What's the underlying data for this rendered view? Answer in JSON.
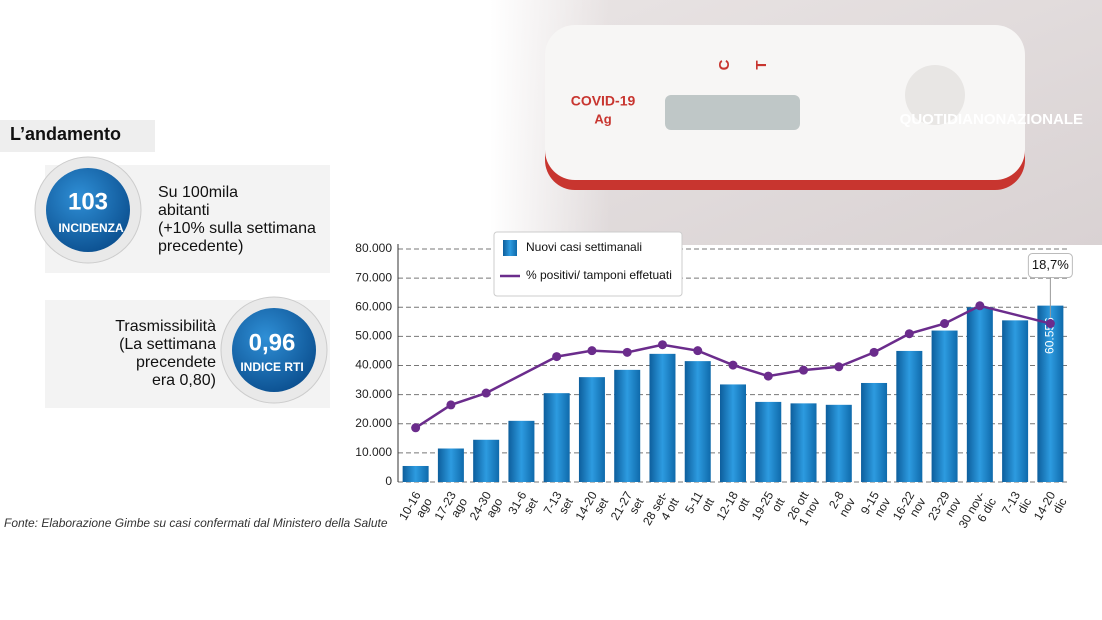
{
  "header": {
    "title": "L’andamento",
    "brand": "QUOTIDIANONAZIONALE",
    "test_label": "COVID-19",
    "test_sub": "Ag",
    "test_c": "C",
    "test_t": "T"
  },
  "incidence": {
    "value": "103",
    "label": "INCIDENZA",
    "text": [
      "Su 100mila",
      "abitanti",
      "(+10% sulla settimana",
      "precedente)"
    ]
  },
  "rt": {
    "value": "0,96",
    "label": "INDICE RTI",
    "text": [
      "Trasmissibilità",
      "(La settimana",
      "precendete",
      "era 0,80)"
    ]
  },
  "source": "Fonte: Elaborazione Gimbe su casi confermati dal Ministero della Salute",
  "chart_data": {
    "type": "bar",
    "categories": [
      "10-16\nago",
      "17-23\nago",
      "24-30\nago",
      "31-6\nset",
      "7-13\nset",
      "14-20\nset",
      "21-27\nset",
      "28 set-\n4 ott",
      "5-11\nott",
      "12-18\nott",
      "19-25\nott",
      "26 ott\n1 nov",
      "2-8\nnov",
      "9-15\nnov",
      "16-22\nnov",
      "23-29\nnov",
      "30 nov-\n6 dic",
      "7-13\ndic",
      "14-20\ndic"
    ],
    "ylim": [
      0,
      80000
    ],
    "yticks": [
      0,
      {
        "value": 10000,
        "label": "10.000"
      },
      {
        "value": 20000,
        "label": "20.000"
      },
      {
        "value": 30000,
        "label": "30.000"
      },
      {
        "value": 40000,
        "label": "40.000"
      },
      {
        "value": 50000,
        "label": "50.000"
      },
      {
        "value": 60000,
        "label": "60.000"
      },
      {
        "value": 70000,
        "label": "70.000"
      },
      {
        "value": 80000,
        "label": "80.000"
      }
    ],
    "y2lim": [
      0,
      27.5
    ],
    "grid": true,
    "series": [
      {
        "name": "Nuovi casi settimanali",
        "color": "#1a80c4",
        "type": "bar",
        "values": [
          5500,
          11500,
          14500,
          21000,
          30500,
          36000,
          38500,
          44000,
          41500,
          33500,
          27500,
          27000,
          26500,
          34000,
          45000,
          52000,
          60000,
          55500,
          60556
        ],
        "value_labels": [
          null,
          null,
          null,
          null,
          null,
          null,
          null,
          null,
          null,
          null,
          null,
          null,
          null,
          null,
          null,
          null,
          null,
          null,
          "60.556"
        ]
      },
      {
        "name": "% positivi/ tamponi effetuati",
        "color": "#6b2c8c",
        "type": "line",
        "axis": "y2",
        "values": [
          6.4,
          9.1,
          10.5,
          null,
          14.8,
          15.5,
          15.3,
          16.2,
          15.5,
          13.8,
          12.5,
          13.2,
          13.6,
          15.3,
          17.5,
          18.7,
          20.8,
          null,
          18.7
        ],
        "value_labels": [
          null,
          null,
          null,
          null,
          null,
          null,
          null,
          null,
          null,
          null,
          null,
          null,
          null,
          null,
          null,
          null,
          null,
          null,
          "18,7%"
        ]
      }
    ]
  }
}
